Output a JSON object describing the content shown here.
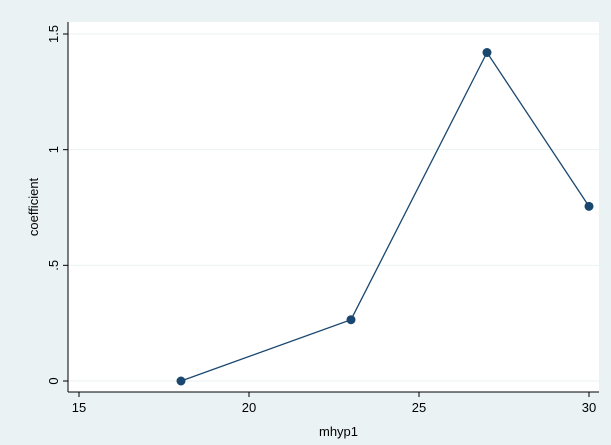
{
  "chart_data": {
    "type": "line",
    "title": "",
    "xlabel": "mhyp1",
    "ylabel": "coefficient",
    "xlim": [
      15,
      30
    ],
    "ylim": [
      0,
      1.5
    ],
    "x_ticks": [
      15,
      20,
      25,
      30
    ],
    "x_tick_labels": [
      "15",
      "20",
      "25",
      "30"
    ],
    "y_ticks": [
      0,
      0.5,
      1,
      1.5
    ],
    "y_tick_labels": [
      "0",
      ".5",
      "1",
      "1.5"
    ],
    "grid": true,
    "legend": "none",
    "series": [
      {
        "x": [
          18,
          23,
          27,
          30
        ],
        "values": [
          0,
          0.265,
          1.42,
          0.755
        ]
      }
    ],
    "colors": {
      "background": "#eaf2f3",
      "plot_area": "#ffffff",
      "grid": "#eaf2f3",
      "line": "#1a476f",
      "marker": "#1a476f"
    }
  }
}
